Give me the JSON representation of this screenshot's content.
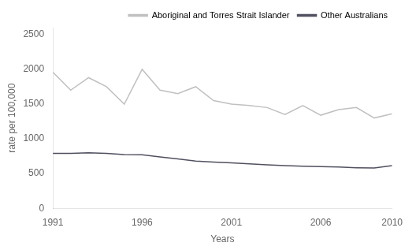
{
  "chart_data": {
    "type": "line",
    "x": [
      1991,
      1992,
      1993,
      1994,
      1995,
      1996,
      1997,
      1998,
      1999,
      2000,
      2001,
      2002,
      2003,
      2004,
      2005,
      2006,
      2007,
      2008,
      2009,
      2010
    ],
    "series": [
      {
        "name": "Aboriginal and Torres Strait Islander",
        "color": "#c0c0c0",
        "values": [
          1960,
          1700,
          1880,
          1750,
          1500,
          2000,
          1700,
          1650,
          1750,
          1550,
          1500,
          1480,
          1450,
          1350,
          1480,
          1340,
          1420,
          1450,
          1300,
          1360
        ]
      },
      {
        "name": "Other Australians",
        "color": "#505060",
        "values": [
          790,
          790,
          800,
          790,
          775,
          770,
          740,
          710,
          680,
          665,
          655,
          640,
          625,
          615,
          605,
          600,
          595,
          585,
          580,
          615
        ]
      }
    ],
    "xlabel": "Years",
    "ylabel": "rate per 100,000",
    "xlim": [
      1991,
      2010
    ],
    "ylim": [
      0,
      2600
    ],
    "xticks": [
      1991,
      1996,
      2001,
      2006,
      2010
    ],
    "yticks": [
      0,
      500,
      1000,
      1500,
      2000,
      2500
    ],
    "grid": false,
    "legend": "upper right"
  }
}
